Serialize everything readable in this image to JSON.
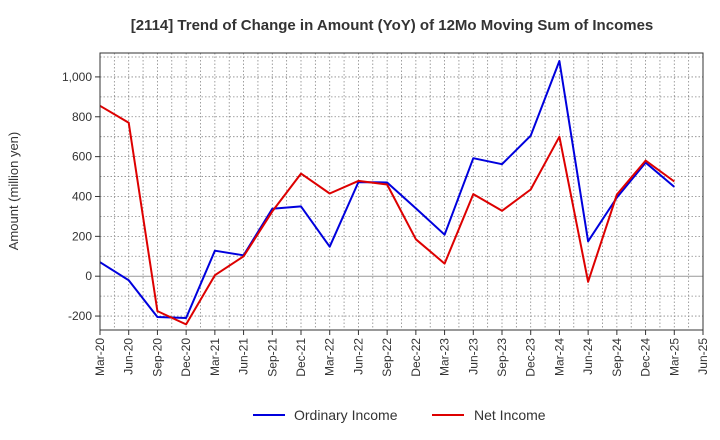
{
  "chart_data": {
    "type": "line",
    "title": "[2114]  Trend of Change in Amount (YoY) of 12Mo Moving Sum of Incomes",
    "xlabel": "",
    "ylabel": "Amount (million yen)",
    "ylim": [
      -270,
      1120
    ],
    "yticks": [
      -200,
      0,
      200,
      400,
      600,
      800,
      1000
    ],
    "ytick_labels": [
      "-200",
      "0",
      "200",
      "400",
      "600",
      "800",
      "1,000"
    ],
    "categories": [
      "Mar-20",
      "Jun-20",
      "Sep-20",
      "Dec-20",
      "Mar-21",
      "Jun-21",
      "Sep-21",
      "Dec-21",
      "Mar-22",
      "Jun-22",
      "Sep-22",
      "Dec-22",
      "Mar-23",
      "Jun-23",
      "Sep-23",
      "Dec-23",
      "Mar-24",
      "Jun-24",
      "Sep-24",
      "Dec-24",
      "Mar-25",
      "Jun-25"
    ],
    "grid": true,
    "legend": "bottom",
    "series": [
      {
        "name": "Ordinary Income",
        "color": "#0000dd",
        "values": [
          70,
          -20,
          -205,
          -210,
          128,
          105,
          338,
          350,
          148,
          472,
          470,
          340,
          208,
          592,
          562,
          705,
          1080,
          175,
          395,
          570,
          448,
          null
        ]
      },
      {
        "name": "Net Income",
        "color": "#dd0000",
        "values": [
          855,
          770,
          -175,
          -242,
          5,
          100,
          325,
          515,
          415,
          478,
          460,
          185,
          63,
          412,
          328,
          435,
          700,
          -28,
          410,
          580,
          475,
          null
        ]
      }
    ]
  }
}
